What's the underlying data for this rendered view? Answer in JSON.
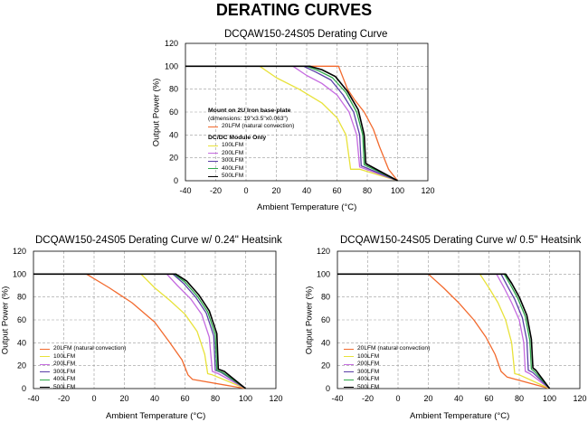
{
  "page_title": "DERATING CURVES",
  "colors": {
    "20LFM": "#f26a2e",
    "100LFM": "#e8e23a",
    "200LFM": "#c56be0",
    "300LFM": "#5b3fa8",
    "400LFM": "#2ea84a",
    "500LFM": "#000000"
  },
  "chart_data": [
    {
      "type": "line",
      "title": "DCQAW150-24S05 Derating Curve",
      "xlabel": "Ambient Temperature (°C)",
      "ylabel": "Output Power (%)",
      "xlim": [
        -40,
        120
      ],
      "ylim": [
        0,
        120
      ],
      "xticks": [
        "-40",
        "-20",
        "0",
        "20",
        "40",
        "60",
        "80",
        "100",
        "120"
      ],
      "yticks": [
        "0",
        "20",
        "40",
        "60",
        "80",
        "100",
        "120"
      ],
      "grid": true,
      "legend_position": "center",
      "legend_header": "Mount on 2U Iron base-plate",
      "legend_subheader": "(dimensions: 19\"x3.5\"x0.063\")",
      "legend_group2_header": "DC/DC Module Only",
      "series": [
        {
          "name": "20LFM (natural convection)",
          "color_key": "20LFM",
          "x": [
            -40,
            61,
            67,
            72,
            78,
            84,
            88,
            94,
            100
          ],
          "y": [
            100,
            100,
            80,
            70,
            60,
            45,
            30,
            10,
            0
          ]
        },
        {
          "name": "100LFM",
          "color_key": "100LFM",
          "x": [
            -40,
            9,
            20,
            35,
            50,
            60,
            66,
            69,
            75,
            100
          ],
          "y": [
            100,
            100,
            90,
            80,
            68,
            55,
            40,
            10,
            10,
            0
          ]
        },
        {
          "name": "200LFM",
          "color_key": "200LFM",
          "x": [
            -40,
            31,
            40,
            50,
            60,
            68,
            73,
            75,
            100
          ],
          "y": [
            100,
            100,
            92,
            85,
            75,
            60,
            40,
            12,
            0
          ]
        },
        {
          "name": "300LFM",
          "color_key": "300LFM",
          "x": [
            -40,
            38,
            46,
            56,
            64,
            71,
            75,
            76,
            100
          ],
          "y": [
            100,
            100,
            95,
            88,
            75,
            60,
            40,
            13,
            0
          ]
        },
        {
          "name": "400LFM",
          "color_key": "400LFM",
          "x": [
            -40,
            40,
            48,
            57,
            66,
            73,
            77,
            78,
            100
          ],
          "y": [
            100,
            100,
            96,
            90,
            77,
            60,
            40,
            14,
            0
          ]
        },
        {
          "name": "500LFM",
          "color_key": "500LFM",
          "x": [
            -40,
            42,
            50,
            59,
            67,
            74,
            78,
            79,
            100
          ],
          "y": [
            100,
            100,
            97,
            91,
            78,
            62,
            40,
            15,
            0
          ]
        }
      ]
    },
    {
      "type": "line",
      "title": "DCQAW150-24S05 Derating Curve w/ 0.24\" Heatsink",
      "xlabel": "Ambient Temperature (°C)",
      "ylabel": "Output Power (%)",
      "xlim": [
        -40,
        120
      ],
      "ylim": [
        0,
        120
      ],
      "xticks": [
        "-40",
        "-20",
        "0",
        "20",
        "40",
        "60",
        "80",
        "100",
        "120"
      ],
      "yticks": [
        "0",
        "20",
        "40",
        "60",
        "80",
        "100",
        "120"
      ],
      "grid": true,
      "legend_position": "bottom-left",
      "series": [
        {
          "name": "20LFM (natural convection)",
          "color_key": "20LFM",
          "x": [
            -40,
            -5,
            10,
            25,
            40,
            50,
            58,
            62,
            65,
            100
          ],
          "y": [
            100,
            100,
            88,
            75,
            58,
            40,
            25,
            12,
            8,
            0
          ]
        },
        {
          "name": "100LFM",
          "color_key": "100LFM",
          "x": [
            -40,
            31,
            40,
            50,
            60,
            68,
            73,
            75,
            78,
            100
          ],
          "y": [
            100,
            100,
            88,
            77,
            65,
            50,
            30,
            13,
            12,
            0
          ]
        },
        {
          "name": "200LFM",
          "color_key": "200LFM",
          "x": [
            -40,
            48,
            55,
            64,
            71,
            76,
            78,
            82,
            100
          ],
          "y": [
            100,
            100,
            90,
            78,
            65,
            45,
            15,
            13,
            0
          ]
        },
        {
          "name": "300LFM",
          "color_key": "300LFM",
          "x": [
            -40,
            52,
            59,
            67,
            74,
            79,
            80,
            84,
            100
          ],
          "y": [
            100,
            100,
            92,
            80,
            66,
            46,
            16,
            14,
            0
          ]
        },
        {
          "name": "400LFM",
          "color_key": "400LFM",
          "x": [
            -40,
            53,
            60,
            68,
            75,
            80,
            81,
            85,
            100
          ],
          "y": [
            100,
            100,
            93,
            81,
            67,
            47,
            16,
            14,
            0
          ]
        },
        {
          "name": "500LFM",
          "color_key": "500LFM",
          "x": [
            -40,
            54,
            61,
            69,
            76,
            81,
            82,
            86,
            100
          ],
          "y": [
            100,
            100,
            94,
            82,
            68,
            48,
            17,
            15,
            0
          ]
        }
      ]
    },
    {
      "type": "line",
      "title": "DCQAW150-24S05 Derating Curve w/ 0.5\" Heatsink",
      "xlabel": "Ambient Temperature (°C)",
      "ylabel": "Output Power (%)",
      "xlim": [
        -40,
        120
      ],
      "ylim": [
        0,
        120
      ],
      "xticks": [
        "-40",
        "-20",
        "0",
        "20",
        "40",
        "60",
        "80",
        "100",
        "120"
      ],
      "yticks": [
        "0",
        "20",
        "40",
        "60",
        "80",
        "100",
        "120"
      ],
      "grid": true,
      "legend_position": "bottom-left",
      "series": [
        {
          "name": "20LFM (natural convection)",
          "color_key": "20LFM",
          "x": [
            -40,
            20,
            30,
            40,
            50,
            58,
            64,
            68,
            72,
            100
          ],
          "y": [
            100,
            100,
            88,
            75,
            60,
            45,
            30,
            15,
            10,
            0
          ]
        },
        {
          "name": "100LFM",
          "color_key": "100LFM",
          "x": [
            -40,
            54,
            60,
            66,
            71,
            75,
            77,
            80,
            100
          ],
          "y": [
            100,
            100,
            88,
            75,
            60,
            40,
            13,
            12,
            0
          ]
        },
        {
          "name": "200LFM",
          "color_key": "200LFM",
          "x": [
            -40,
            65,
            70,
            75,
            80,
            83,
            84,
            87,
            100
          ],
          "y": [
            100,
            100,
            88,
            75,
            60,
            40,
            15,
            13,
            0
          ]
        },
        {
          "name": "300LFM",
          "color_key": "300LFM",
          "x": [
            -40,
            68,
            72,
            77,
            82,
            85,
            86,
            89,
            100
          ],
          "y": [
            100,
            100,
            90,
            78,
            62,
            42,
            16,
            14,
            0
          ]
        },
        {
          "name": "400LFM",
          "color_key": "400LFM",
          "x": [
            -40,
            70,
            74,
            79,
            84,
            87,
            88,
            90,
            100
          ],
          "y": [
            100,
            100,
            91,
            79,
            63,
            42,
            17,
            15,
            0
          ]
        },
        {
          "name": "500LFM",
          "color_key": "500LFM",
          "x": [
            -40,
            71,
            75,
            80,
            85,
            88,
            89,
            91,
            100
          ],
          "y": [
            100,
            100,
            92,
            80,
            64,
            43,
            18,
            16,
            0
          ]
        }
      ]
    }
  ]
}
